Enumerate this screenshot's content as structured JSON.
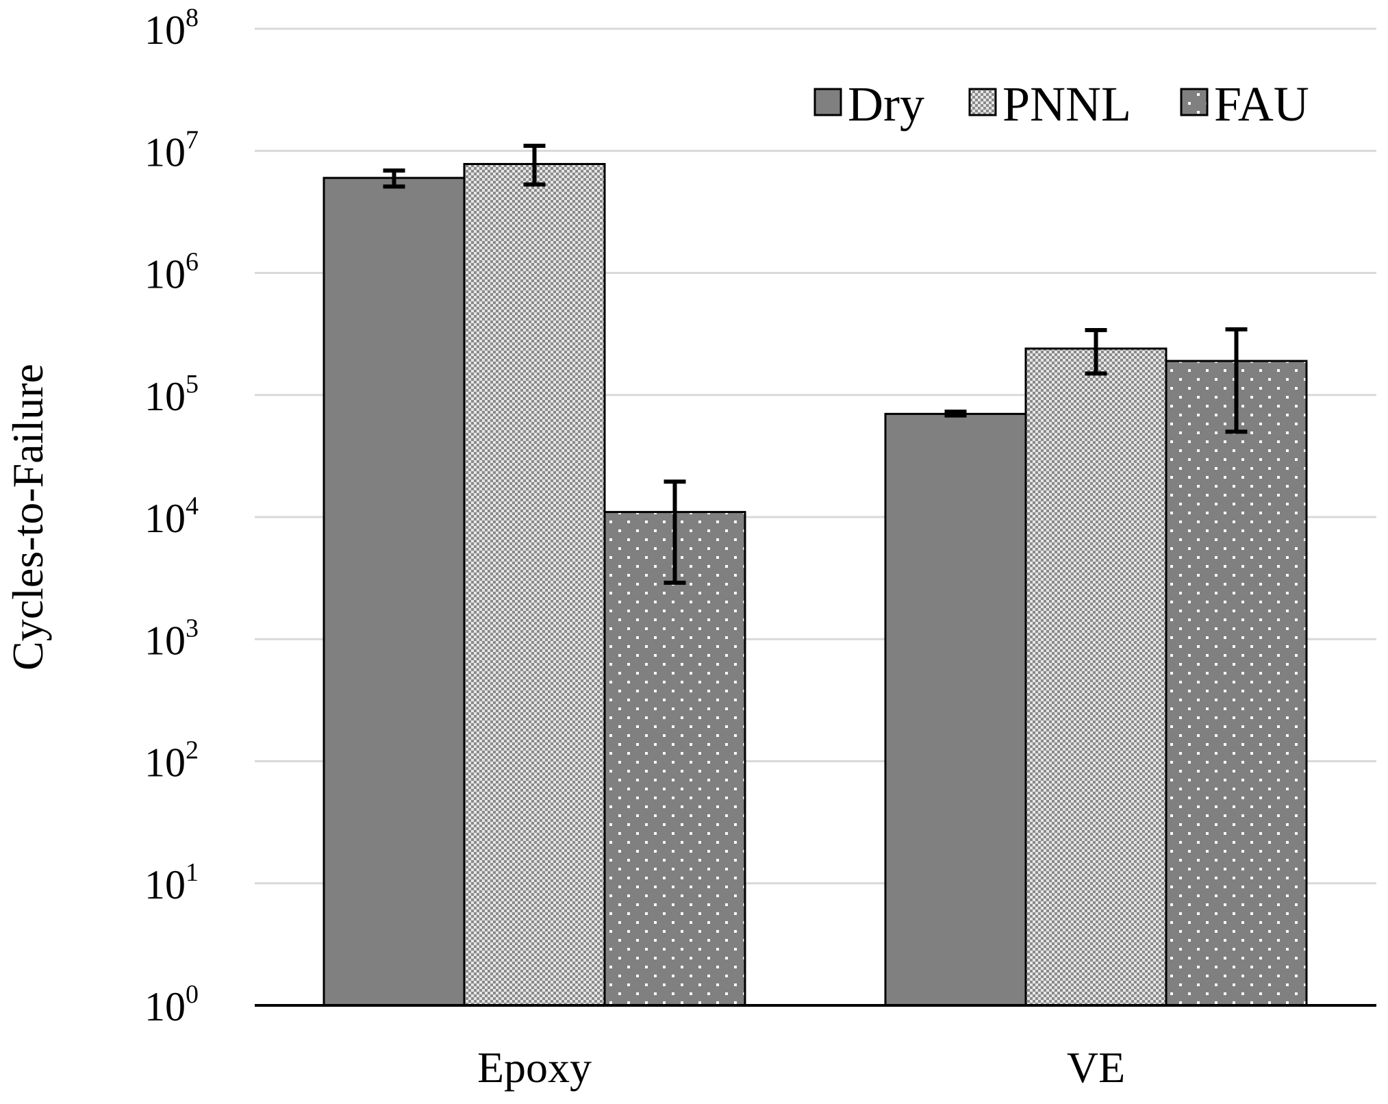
{
  "chart_data": {
    "type": "bar",
    "title": "",
    "xlabel": "",
    "ylabel": "Cycles-to-Failure",
    "yscale": "log",
    "ylim": [
      1,
      100000000
    ],
    "grid": true,
    "legend_position": "top-right",
    "categories": [
      "Epoxy",
      "VE"
    ],
    "yticks": [
      {
        "base": "10",
        "exp": "0"
      },
      {
        "base": "10",
        "exp": "1"
      },
      {
        "base": "10",
        "exp": "2"
      },
      {
        "base": "10",
        "exp": "3"
      },
      {
        "base": "10",
        "exp": "4"
      },
      {
        "base": "10",
        "exp": "5"
      },
      {
        "base": "10",
        "exp": "6"
      },
      {
        "base": "10",
        "exp": "7"
      },
      {
        "base": "10",
        "exp": "8"
      }
    ],
    "series": [
      {
        "name": "Dry",
        "pattern": "solid",
        "color": "#808080",
        "values": [
          6000000,
          70000
        ],
        "err_low": [
          5100000,
          68000
        ],
        "err_high": [
          6900000,
          73000
        ]
      },
      {
        "name": "PNNL",
        "pattern": "checker",
        "color": "#9a9a9a",
        "values": [
          7800000,
          240000
        ],
        "err_low": [
          5300000,
          150000
        ],
        "err_high": [
          11000000,
          340000
        ]
      },
      {
        "name": "FAU",
        "pattern": "dots",
        "color": "#808080",
        "values": [
          11000,
          190000
        ],
        "err_low": [
          2900,
          50000
        ],
        "err_high": [
          19500,
          345000
        ]
      }
    ]
  }
}
